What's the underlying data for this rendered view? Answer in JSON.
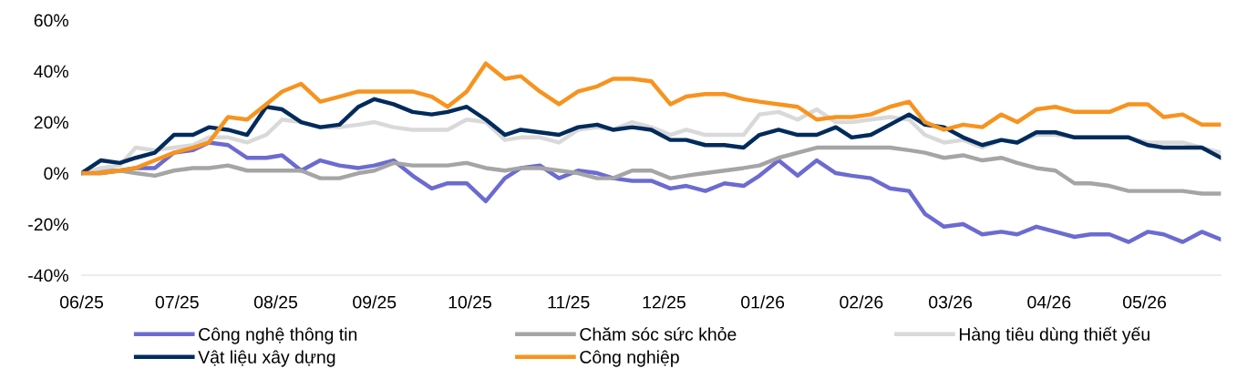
{
  "chart_data": {
    "type": "line",
    "x": [
      "2025-06-01",
      "2025-06-07",
      "2025-06-13",
      "2025-06-18",
      "2025-06-24",
      "2025-06-30",
      "2025-07-06",
      "2025-07-11",
      "2025-07-17",
      "2025-07-23",
      "2025-07-29",
      "2025-08-03",
      "2025-08-09",
      "2025-08-15",
      "2025-08-21",
      "2025-08-27",
      "2025-09-01",
      "2025-09-07",
      "2025-09-13",
      "2025-09-19",
      "2025-09-24",
      "2025-09-30",
      "2025-10-06",
      "2025-10-12",
      "2025-10-17",
      "2025-10-23",
      "2025-10-29",
      "2025-11-04",
      "2025-11-10",
      "2025-11-15",
      "2025-11-21",
      "2025-11-27",
      "2025-12-03",
      "2025-12-08",
      "2025-12-14",
      "2025-12-20",
      "2025-12-26",
      "2025-12-31",
      "2026-01-06",
      "2026-01-12",
      "2026-01-18",
      "2026-01-24",
      "2026-01-29",
      "2026-02-04",
      "2026-02-10",
      "2026-02-16",
      "2026-02-21",
      "2026-02-27",
      "2026-03-05",
      "2026-03-11",
      "2026-03-17",
      "2026-03-22",
      "2026-03-28",
      "2026-04-03",
      "2026-04-09",
      "2026-04-14",
      "2026-04-20",
      "2026-04-26",
      "2026-05-02",
      "2026-05-07",
      "2026-05-13",
      "2026-05-19",
      "2026-05-25"
    ],
    "series": [
      {
        "name": "Công nghệ thông tin",
        "color": "#6b6bd1",
        "values": [
          0,
          0,
          1,
          2,
          2,
          8,
          9,
          12,
          11,
          6,
          6,
          7,
          1,
          5,
          3,
          2,
          3,
          5,
          -1,
          -6,
          -4,
          -4,
          -11,
          -2,
          2,
          3,
          -2,
          1,
          0,
          -2,
          -3,
          -3,
          -6,
          -5,
          -7,
          -4,
          -5,
          -1,
          5,
          -1,
          5,
          0,
          -1,
          -2,
          -6,
          -7,
          -16,
          -21,
          -20,
          -24,
          -23,
          -24,
          -21,
          -23,
          -25,
          -24,
          -24,
          -27,
          -23,
          -24,
          -27,
          -23,
          -26
        ]
      },
      {
        "name": "Chăm sóc sức khỏe",
        "color": "#a5a5a5",
        "values": [
          0,
          1,
          1,
          0,
          -1,
          1,
          2,
          2,
          3,
          1,
          1,
          1,
          1,
          -2,
          -2,
          0,
          1,
          4,
          3,
          3,
          3,
          4,
          2,
          1,
          2,
          2,
          1,
          0,
          -2,
          -2,
          1,
          1,
          -2,
          -1,
          0,
          1,
          2,
          3,
          6,
          8,
          10,
          10,
          10,
          10,
          10,
          9,
          8,
          6,
          7,
          5,
          6,
          4,
          2,
          1,
          -4,
          -4,
          -5,
          -7,
          -7,
          -7,
          -7,
          -8,
          -8
        ]
      },
      {
        "name": "Hàng tiêu dùng thiết yếu",
        "color": "#d9d9d9",
        "values": [
          0,
          2,
          3,
          10,
          9,
          10,
          11,
          14,
          14,
          12,
          15,
          21,
          20,
          18,
          18,
          19,
          20,
          18,
          17,
          17,
          17,
          21,
          20,
          13,
          14,
          14,
          12,
          17,
          18,
          17,
          20,
          18,
          15,
          17,
          15,
          15,
          15,
          23,
          24,
          21,
          25,
          20,
          20,
          21,
          22,
          21,
          15,
          12,
          13,
          10,
          13,
          12,
          15,
          15,
          14,
          14,
          14,
          14,
          12,
          12,
          12,
          10,
          8
        ]
      },
      {
        "name": "Vật liệu xây dựng",
        "color": "#002b5c",
        "values": [
          0,
          5,
          4,
          6,
          8,
          15,
          15,
          18,
          17,
          15,
          26,
          25,
          20,
          18,
          19,
          26,
          29,
          27,
          24,
          23,
          24,
          26,
          21,
          15,
          17,
          16,
          15,
          18,
          19,
          17,
          18,
          17,
          13,
          13,
          11,
          11,
          10,
          15,
          17,
          15,
          15,
          18,
          14,
          15,
          19,
          23,
          19,
          18,
          14,
          11,
          13,
          12,
          16,
          16,
          14,
          14,
          14,
          14,
          11,
          10,
          10,
          10,
          6
        ]
      },
      {
        "name": "Công nghiệp",
        "color": "#f7931e",
        "values": [
          0,
          0,
          1,
          2,
          5,
          8,
          10,
          12,
          22,
          21,
          27,
          32,
          35,
          28,
          30,
          32,
          32,
          32,
          32,
          30,
          26,
          32,
          43,
          37,
          38,
          32,
          27,
          32,
          34,
          37,
          37,
          36,
          27,
          30,
          31,
          31,
          29,
          28,
          27,
          26,
          21,
          22,
          22,
          23,
          26,
          28,
          20,
          17,
          19,
          18,
          23,
          20,
          25,
          26,
          24,
          24,
          24,
          27,
          27,
          22,
          23,
          19,
          19
        ]
      }
    ],
    "xticks": [
      {
        "value": "2025-06-01",
        "label": "06/25"
      },
      {
        "value": "2025-07-01",
        "label": "07/25"
      },
      {
        "value": "2025-08-01",
        "label": "08/25"
      },
      {
        "value": "2025-09-01",
        "label": "09/25"
      },
      {
        "value": "2025-10-01",
        "label": "10/25"
      },
      {
        "value": "2025-11-01",
        "label": "11/25"
      },
      {
        "value": "2025-12-01",
        "label": "12/25"
      },
      {
        "value": "2026-01-01",
        "label": "01/26"
      },
      {
        "value": "2026-02-01",
        "label": "02/26"
      },
      {
        "value": "2026-03-01",
        "label": "03/26"
      },
      {
        "value": "2026-04-01",
        "label": "04/26"
      },
      {
        "value": "2026-05-01",
        "label": "05/26"
      }
    ],
    "xlim": [
      "2025-06-01",
      "2026-05-25"
    ],
    "ylim": [
      -40,
      60
    ],
    "yticks": [
      {
        "value": -40,
        "label": "-40%"
      },
      {
        "value": -20,
        "label": "-20%"
      },
      {
        "value": 0,
        "label": "0%"
      },
      {
        "value": 20,
        "label": "20%"
      },
      {
        "value": 40,
        "label": "40%"
      },
      {
        "value": 60,
        "label": "60%"
      }
    ],
    "grid": false,
    "legend": "bottom",
    "marker": "none",
    "line_style": "solid"
  }
}
